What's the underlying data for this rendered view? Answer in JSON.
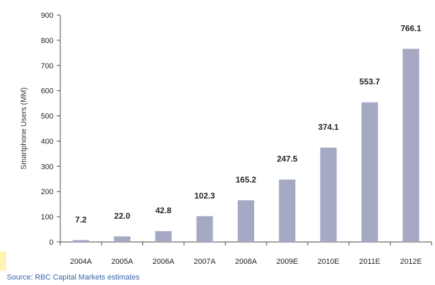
{
  "chart_data": {
    "type": "bar",
    "categories": [
      "2004A",
      "2005A",
      "2006A",
      "2007A",
      "2008A",
      "2009E",
      "2010E",
      "2011E",
      "2012E"
    ],
    "values": [
      7.2,
      22.0,
      42.8,
      102.3,
      165.2,
      247.5,
      374.1,
      553.7,
      766.1
    ],
    "value_labels": [
      "7.2",
      "22.0",
      "42.8",
      "102.3",
      "165.2",
      "247.5",
      "374.1",
      "553.7",
      "766.1"
    ],
    "title": "",
    "xlabel": "",
    "ylabel": "Smartphone Users (MM)",
    "ylim": [
      0,
      900
    ],
    "yticks": [
      "0",
      "100",
      "200",
      "300",
      "400",
      "500",
      "600",
      "700",
      "800",
      "900"
    ],
    "grid": false,
    "bar_color": "#a5a9c4"
  },
  "source": "Source: RBC Capital Markets estimates"
}
